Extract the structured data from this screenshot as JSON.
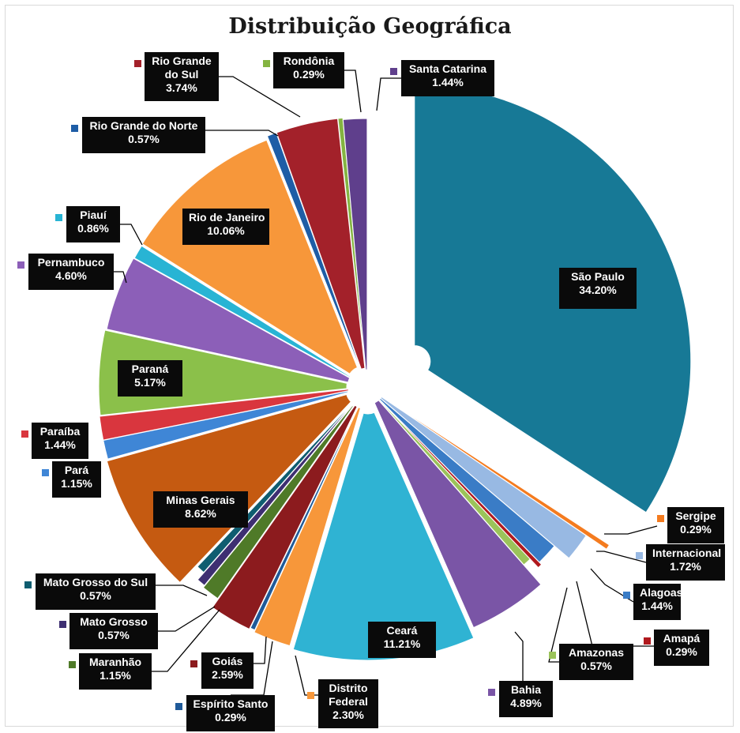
{
  "chart_data": {
    "type": "pie",
    "title": "Distribuição Geográfica",
    "slices": [
      {
        "label": "São Paulo",
        "value": 34.2,
        "display": "34.20%",
        "color": "#177996"
      },
      {
        "label": "Sergipe",
        "value": 0.29,
        "display": "0.29%",
        "color": "#f47b1f"
      },
      {
        "label": "Internacional",
        "value": 1.72,
        "display": "1.72%",
        "color": "#98b9e3"
      },
      {
        "label": "Alagoas",
        "value": 1.44,
        "display": "1.44%",
        "color": "#3a7cc6"
      },
      {
        "label": "Amapá",
        "value": 0.29,
        "display": "0.29%",
        "color": "#b0191e"
      },
      {
        "label": "Amazonas",
        "value": 0.57,
        "display": "0.57%",
        "color": "#9bc35a"
      },
      {
        "label": "Bahia",
        "value": 4.89,
        "display": "4.89%",
        "color": "#7a55a6"
      },
      {
        "label": "Ceará",
        "value": 11.21,
        "display": "11.21%",
        "color": "#2fb3d3"
      },
      {
        "label": "Distrito Federal",
        "value": 2.3,
        "display": "2.30%",
        "color": "#f7973a"
      },
      {
        "label": "Espírito Santo",
        "value": 0.29,
        "display": "0.29%",
        "color": "#1f5a99"
      },
      {
        "label": "Goiás",
        "value": 2.59,
        "display": "2.59%",
        "color": "#8c1b1e"
      },
      {
        "label": "Maranhão",
        "value": 1.15,
        "display": "1.15%",
        "color": "#4f7a28"
      },
      {
        "label": "Mato Grosso",
        "value": 0.57,
        "display": "0.57%",
        "color": "#3e2f72"
      },
      {
        "label": "Mato Grosso do Sul",
        "value": 0.57,
        "display": "0.57%",
        "color": "#0f5d70"
      },
      {
        "label": "Minas Gerais",
        "value": 8.62,
        "display": "8.62%",
        "color": "#c55a11"
      },
      {
        "label": "Pará",
        "value": 1.15,
        "display": "1.15%",
        "color": "#3f86d6"
      },
      {
        "label": "Paraíba",
        "value": 1.44,
        "display": "1.44%",
        "color": "#d9363e"
      },
      {
        "label": "Paraná",
        "value": 5.17,
        "display": "5.17%",
        "color": "#8bc04a"
      },
      {
        "label": "Pernambuco",
        "value": 4.6,
        "display": "4.60%",
        "color": "#8c5fb8"
      },
      {
        "label": "Piauí",
        "value": 0.86,
        "display": "0.86%",
        "color": "#28b4d4"
      },
      {
        "label": "Rio de Janeiro",
        "value": 10.06,
        "display": "10.06%",
        "color": "#f7973a"
      },
      {
        "label": "Rio Grande do Norte",
        "value": 0.57,
        "display": "0.57%",
        "color": "#1e5da6"
      },
      {
        "label": "Rio Grande do Sul",
        "value": 3.74,
        "display": "3.74%",
        "color": "#a3212a"
      },
      {
        "label": "Rondônia",
        "value": 0.29,
        "display": "0.29%",
        "color": "#84b441"
      },
      {
        "label": "Santa Catarina",
        "value": 1.44,
        "display": "1.44%",
        "color": "#5f3f8c"
      }
    ]
  }
}
